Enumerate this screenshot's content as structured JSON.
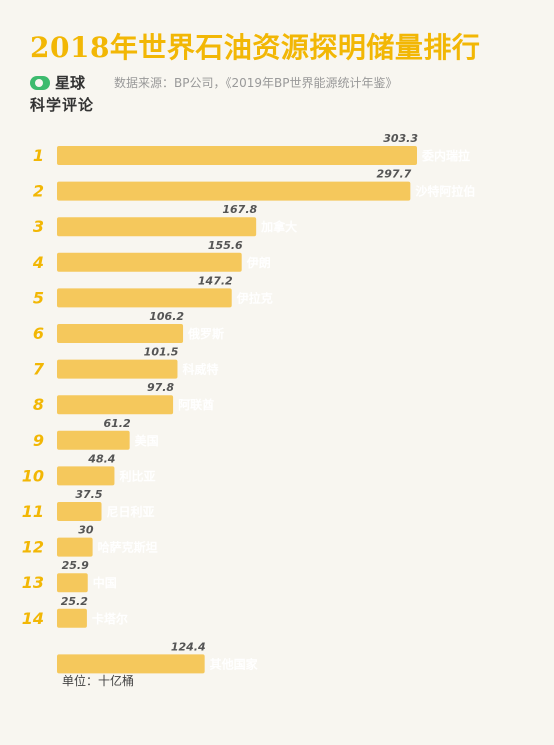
{
  "title": "2018年世界石油资源探明储量排行",
  "logo": {
    "line1": "星球",
    "line2": "科学评论"
  },
  "source": "数据来源：BP公司，《2019年BP世界能源统计年鉴》",
  "unit": "单位：十亿桶",
  "colors": {
    "bar": "#f5c85c",
    "title": "#f2b705",
    "logo": "#3dbb6e"
  },
  "chart_data": {
    "type": "bar",
    "orientation": "horizontal",
    "title": "2018年世界石油资源探明储量排行",
    "unit": "十亿桶",
    "categories": [
      "委内瑞拉",
      "沙特阿拉伯",
      "加拿大",
      "伊朗",
      "伊拉克",
      "俄罗斯",
      "科威特",
      "阿联酋",
      "美国",
      "利比亚",
      "尼日利亚",
      "哈萨克斯坦",
      "中国",
      "卡塔尔",
      "其他国家"
    ],
    "ranks": [
      "1",
      "2",
      "3",
      "4",
      "5",
      "6",
      "7",
      "8",
      "9",
      "10",
      "11",
      "12",
      "13",
      "14",
      ""
    ],
    "values": [
      303.3,
      297.7,
      167.8,
      155.6,
      147.2,
      106.2,
      101.5,
      97.8,
      61.2,
      48.4,
      37.5,
      30,
      25.9,
      25.2,
      124.4
    ],
    "value_labels": [
      "303.3",
      "297.7",
      "167.8",
      "155.6",
      "147.2",
      "106.2",
      "101.5",
      "97.8",
      "61.2",
      "48.4",
      "37.5",
      "30",
      "25.9",
      "25.2",
      "124.4"
    ]
  }
}
